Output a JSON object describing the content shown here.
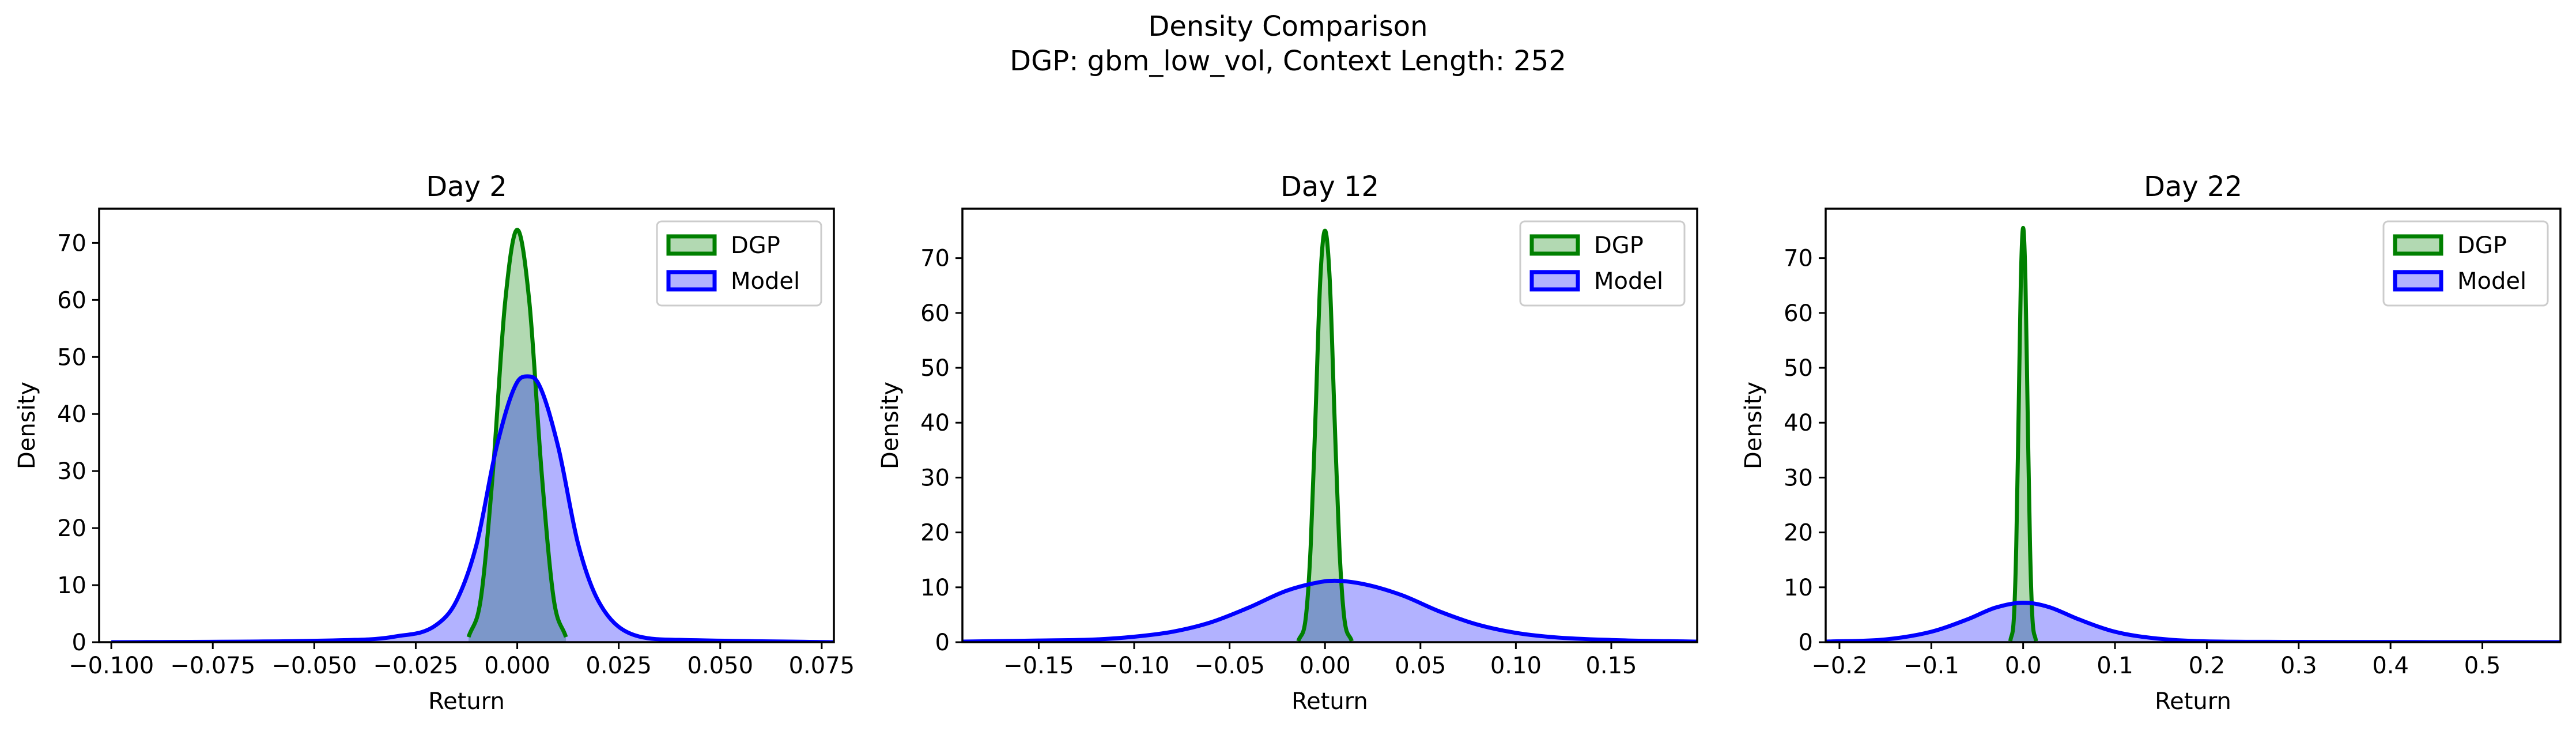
{
  "figure": {
    "title_line1": "Density Comparison",
    "title_line2": "DGP: gbm_low_vol, Context Length: 252"
  },
  "chart_data": [
    {
      "type": "area",
      "title": "Day 2",
      "xlabel": "Return",
      "ylabel": "Density",
      "xlim": [
        -0.103,
        0.078
      ],
      "ylim": [
        0,
        76
      ],
      "xticks": [
        -0.1,
        -0.075,
        -0.05,
        -0.025,
        0.0,
        0.025,
        0.05,
        0.075
      ],
      "xtick_labels": [
        "−0.100",
        "−0.075",
        "−0.050",
        "−0.025",
        "0.000",
        "0.025",
        "0.050",
        "0.075"
      ],
      "yticks": [
        0,
        10,
        20,
        30,
        40,
        50,
        60,
        70
      ],
      "ytick_labels": [
        "0",
        "10",
        "20",
        "30",
        "40",
        "50",
        "60",
        "70"
      ],
      "legend": {
        "placement": "top-right",
        "entries": [
          "DGP",
          "Model"
        ]
      },
      "grid": false,
      "series": [
        {
          "name": "DGP",
          "color": "#008000",
          "fill": "#b2d8b2",
          "x": [
            -0.012,
            -0.009,
            -0.006,
            -0.003,
            0.0,
            0.003,
            0.006,
            0.009,
            0.012
          ],
          "y": [
            0.9,
            7.5,
            29.8,
            59.5,
            72.3,
            59.5,
            29.8,
            7.5,
            0.9
          ]
        },
        {
          "name": "Model",
          "color": "#0000ff",
          "fill": "#b2b2ff",
          "x": [
            -0.1,
            -0.04,
            -0.03,
            -0.02,
            -0.015,
            -0.01,
            -0.005,
            0.0,
            0.0025,
            0.005,
            0.01,
            0.015,
            0.02,
            0.03,
            0.04,
            0.078
          ],
          "y": [
            0,
            0.4,
            1.0,
            3.0,
            7.2,
            17.2,
            34.5,
            45.6,
            46.6,
            45.6,
            34.5,
            17.2,
            7.2,
            1.0,
            0.4,
            0
          ]
        }
      ]
    },
    {
      "type": "area",
      "title": "Day 12",
      "xlabel": "Return",
      "ylabel": "Density",
      "xlim": [
        -0.19,
        0.195
      ],
      "ylim": [
        0,
        79
      ],
      "xticks": [
        -0.15,
        -0.1,
        -0.05,
        0.0,
        0.05,
        0.1,
        0.15
      ],
      "xtick_labels": [
        "−0.15",
        "−0.10",
        "−0.05",
        "0.00",
        "0.05",
        "0.10",
        "0.15"
      ],
      "yticks": [
        0,
        10,
        20,
        30,
        40,
        50,
        60,
        70
      ],
      "ytick_labels": [
        "0",
        "10",
        "20",
        "30",
        "40",
        "50",
        "60",
        "70"
      ],
      "legend": {
        "placement": "top-right",
        "entries": [
          "DGP",
          "Model"
        ]
      },
      "grid": false,
      "series": [
        {
          "name": "DGP",
          "color": "#008000",
          "fill": "#b2d8b2",
          "x": [
            -0.014,
            -0.01,
            -0.0075,
            -0.005,
            -0.0025,
            0.0,
            0.0025,
            0.005,
            0.0075,
            0.01,
            0.014
          ],
          "y": [
            0.2,
            4.7,
            17.5,
            41.0,
            65.9,
            75.0,
            65.9,
            41.0,
            17.5,
            4.7,
            0.2
          ]
        },
        {
          "name": "Model",
          "color": "#0000ff",
          "fill": "#b2b2ff",
          "x": [
            -0.19,
            -0.15,
            -0.12,
            -0.1,
            -0.08,
            -0.06,
            -0.04,
            -0.02,
            0.0,
            0.005,
            0.02,
            0.04,
            0.06,
            0.08,
            0.1,
            0.12,
            0.15,
            0.195
          ],
          "y": [
            0.1,
            0.3,
            0.5,
            1.0,
            1.9,
            3.6,
            6.3,
            9.4,
            11.1,
            11.2,
            10.6,
            8.6,
            5.6,
            3.2,
            1.7,
            0.9,
            0.4,
            0.1
          ]
        }
      ]
    },
    {
      "type": "area",
      "title": "Day 22",
      "xlabel": "Return",
      "ylabel": "Density",
      "xlim": [
        -0.215,
        0.585
      ],
      "ylim": [
        0,
        79
      ],
      "xticks": [
        -0.2,
        -0.1,
        0.0,
        0.1,
        0.2,
        0.3,
        0.4,
        0.5
      ],
      "xtick_labels": [
        "−0.2",
        "−0.1",
        "0.0",
        "0.1",
        "0.2",
        "0.3",
        "0.4",
        "0.5"
      ],
      "yticks": [
        0,
        10,
        20,
        30,
        40,
        50,
        60,
        70
      ],
      "ytick_labels": [
        "0",
        "10",
        "20",
        "30",
        "40",
        "50",
        "60",
        "70"
      ],
      "legend": {
        "placement": "top-right",
        "entries": [
          "DGP",
          "Model"
        ]
      },
      "grid": false,
      "series": [
        {
          "name": "DGP",
          "color": "#008000",
          "fill": "#b2d8b2",
          "x": [
            -0.014,
            -0.01,
            -0.0075,
            -0.005,
            -0.0025,
            0.0,
            0.0025,
            0.005,
            0.0075,
            0.01,
            0.014
          ],
          "y": [
            0.2,
            4.7,
            17.5,
            41.0,
            65.9,
            75.5,
            65.9,
            41.0,
            17.5,
            4.7,
            0.2
          ]
        },
        {
          "name": "Model",
          "color": "#0000ff",
          "fill": "#b2b2ff",
          "x": [
            -0.215,
            -0.15,
            -0.1,
            -0.06,
            -0.03,
            0.0,
            0.01,
            0.03,
            0.06,
            0.1,
            0.15,
            0.2,
            0.3,
            0.585
          ],
          "y": [
            0.1,
            0.5,
            1.9,
            4.2,
            6.3,
            7.2,
            7.1,
            6.3,
            4.2,
            1.9,
            0.6,
            0.15,
            0.05,
            0
          ]
        }
      ]
    }
  ]
}
